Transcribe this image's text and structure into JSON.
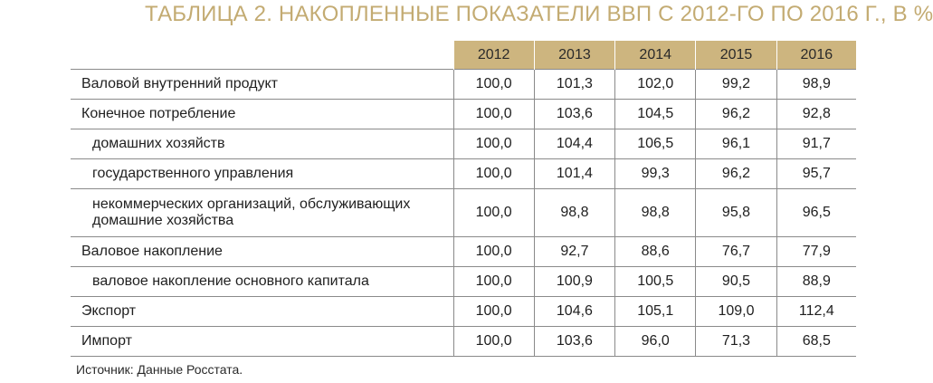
{
  "title": "ТАБЛИЦА 2. НАКОПЛЕННЫЕ ПОКАЗАТЕЛИ ВВП С 2012-ГО ПО 2016 Г., В %",
  "colors": {
    "accent": "#cdb57f",
    "title": "#c3ab72",
    "rule": "#8a8a8a"
  },
  "table": {
    "years": [
      "2012",
      "2013",
      "2014",
      "2015",
      "2016"
    ],
    "rows": [
      {
        "label": "Валовой внутренний продукт",
        "indent": false,
        "values": [
          "100,0",
          "101,3",
          "102,0",
          "99,2",
          "98,9"
        ]
      },
      {
        "label": "Конечное потребление",
        "indent": false,
        "values": [
          "100,0",
          "103,6",
          "104,5",
          "96,2",
          "92,8"
        ]
      },
      {
        "label": "домашних хозяйств",
        "indent": true,
        "values": [
          "100,0",
          "104,4",
          "106,5",
          "96,1",
          "91,7"
        ]
      },
      {
        "label": "государственного управления",
        "indent": true,
        "values": [
          "100,0",
          "101,4",
          "99,3",
          "96,2",
          "95,7"
        ]
      },
      {
        "label": "некоммерческих организаций, обслуживающих домашние хозяйства",
        "indent": true,
        "values": [
          "100,0",
          "98,8",
          "98,8",
          "95,8",
          "96,5"
        ]
      },
      {
        "label": "Валовое накопление",
        "indent": false,
        "values": [
          "100,0",
          "92,7",
          "88,6",
          "76,7",
          "77,9"
        ]
      },
      {
        "label": "валовое накопление основного капитала",
        "indent": true,
        "values": [
          "100,0",
          "100,9",
          "100,5",
          "90,5",
          "88,9"
        ]
      },
      {
        "label": "Экспорт",
        "indent": false,
        "values": [
          "100,0",
          "104,6",
          "105,1",
          "109,0",
          "112,4"
        ]
      },
      {
        "label": "Импорт",
        "indent": false,
        "values": [
          "100,0",
          "103,6",
          "96,0",
          "71,3",
          "68,5"
        ]
      }
    ]
  },
  "source": "Источник: Данные Росстата."
}
